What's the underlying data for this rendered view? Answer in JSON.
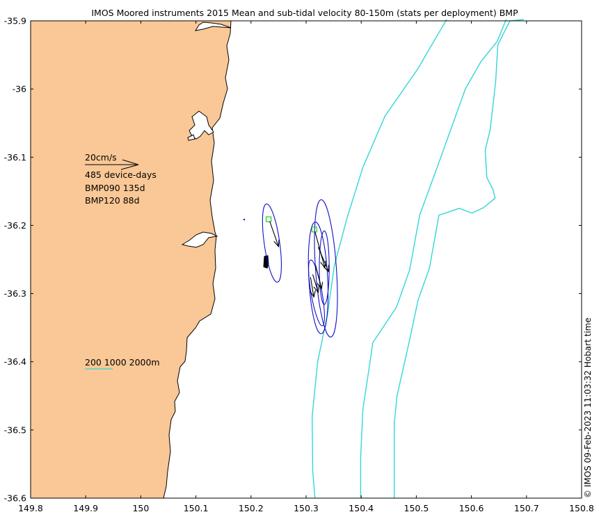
{
  "title": "IMOS Moored instruments 2015 Mean and sub-tidal velocity 80-150m (stats per deployment) BMP",
  "timestamp": "© IMOS 09-Feb-2023 11:03:32 Hobart time",
  "axes": {
    "x_range": [
      149.8,
      150.8
    ],
    "y_range": [
      -36.6,
      -35.9
    ],
    "x_ticks": [
      "149.8",
      "149.9",
      "150",
      "150.1",
      "150.2",
      "150.3",
      "150.4",
      "150.5",
      "150.6",
      "150.7",
      "150.8"
    ],
    "y_ticks": [
      "-35.9",
      "-36",
      "-36.1",
      "-36.2",
      "-36.3",
      "-36.4",
      "-36.5",
      "-36.6"
    ]
  },
  "legend": {
    "scale_label": "20cm/s",
    "device_days": "485 device-days",
    "deployments": [
      "BMP090 135d",
      "BMP120 88d"
    ],
    "isobaths_label": "200 1000 2000m"
  },
  "colors": {
    "land": "#f9c896",
    "isobath": "#33d6d6",
    "ellipse": "#1010c8",
    "site_marker": "#22cc22",
    "arrow": "#000000",
    "isobath_legend": "#33d6d6"
  },
  "chart_data": {
    "type": "map",
    "sites": [
      {
        "name": "BMP090",
        "lon": 150.232,
        "lat": -36.191
      },
      {
        "name": "BMP120",
        "lon": 150.315,
        "lat": -36.206
      }
    ],
    "current_ellipses": [
      {
        "lon": 150.238,
        "lat": -36.226,
        "rx": 0.014,
        "ry": 0.058,
        "angle": -8
      },
      {
        "lon": 150.336,
        "lat": -36.263,
        "rx": 0.019,
        "ry": 0.101,
        "angle": -4
      },
      {
        "lon": 150.322,
        "lat": -36.277,
        "rx": 0.017,
        "ry": 0.082,
        "angle": -3
      },
      {
        "lon": 150.333,
        "lat": -36.262,
        "rx": 0.009,
        "ry": 0.054,
        "angle": 0
      },
      {
        "lon": 150.319,
        "lat": -36.299,
        "rx": 0.01,
        "ry": 0.049,
        "angle": -10
      }
    ],
    "velocity_arrows": [
      {
        "lon0": 150.234,
        "lat0": -36.194,
        "lon1": 150.25,
        "lat1": -36.231
      },
      {
        "lon0": 150.316,
        "lat0": -36.209,
        "lon1": 150.334,
        "lat1": -36.262
      },
      {
        "lon0": 150.322,
        "lat0": -36.232,
        "lon1": 150.341,
        "lat1": -36.268
      },
      {
        "lon0": 150.317,
        "lat0": -36.258,
        "lon1": 150.328,
        "lat1": -36.293
      },
      {
        "lon0": 150.312,
        "lat0": -36.272,
        "lon1": 150.322,
        "lat1": -36.298
      },
      {
        "lon0": 150.308,
        "lat0": -36.276,
        "lon1": 150.314,
        "lat1": -36.305
      }
    ],
    "isobaths": [
      {
        "depth": 200,
        "points": [
          [
            150.316,
            -36.6
          ],
          [
            150.312,
            -36.56
          ],
          [
            150.311,
            -36.48
          ],
          [
            150.321,
            -36.4
          ],
          [
            150.339,
            -36.33
          ],
          [
            150.351,
            -36.26
          ],
          [
            150.374,
            -36.19
          ],
          [
            150.403,
            -36.115
          ],
          [
            150.443,
            -36.04
          ],
          [
            150.503,
            -35.97
          ],
          [
            150.555,
            -35.898
          ]
        ]
      },
      {
        "depth": 1000,
        "points": [
          [
            150.399,
            -36.6
          ],
          [
            150.399,
            -36.54
          ],
          [
            150.403,
            -36.47
          ],
          [
            150.416,
            -36.4
          ],
          [
            150.421,
            -36.372
          ],
          [
            150.464,
            -36.32
          ],
          [
            150.488,
            -36.265
          ],
          [
            150.506,
            -36.185
          ],
          [
            150.54,
            -36.11
          ],
          [
            150.589,
            -36.0
          ],
          [
            150.617,
            -35.96
          ],
          [
            150.647,
            -35.93
          ],
          [
            150.663,
            -35.898
          ]
        ]
      },
      {
        "depth": 2000,
        "points": [
          [
            150.46,
            -36.6
          ],
          [
            150.46,
            -36.49
          ],
          [
            150.465,
            -36.45
          ],
          [
            150.49,
            -36.36
          ],
          [
            150.503,
            -36.31
          ],
          [
            150.524,
            -36.262
          ],
          [
            150.541,
            -36.185
          ],
          [
            150.578,
            -36.175
          ],
          [
            150.601,
            -36.182
          ],
          [
            150.622,
            -36.174
          ],
          [
            150.643,
            -36.16
          ],
          [
            150.639,
            -36.147
          ],
          [
            150.628,
            -36.13
          ],
          [
            150.625,
            -36.09
          ],
          [
            150.634,
            -36.06
          ],
          [
            150.644,
            -35.99
          ],
          [
            150.648,
            -35.935
          ],
          [
            150.67,
            -35.9
          ],
          [
            150.695,
            -35.898
          ]
        ]
      }
    ]
  }
}
